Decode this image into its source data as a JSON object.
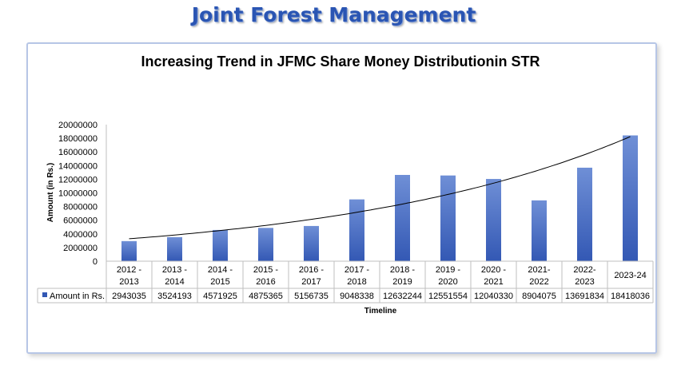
{
  "header": {
    "title": "Joint Forest Management"
  },
  "chart_data": {
    "type": "bar",
    "title": "Increasing Trend in JFMC Share Money Distributionin STR",
    "xlabel": "Timeline",
    "ylabel": "Amount  (in Rs.)",
    "ylim": [
      0,
      20000000
    ],
    "yticks": [
      "0",
      "2000000",
      "4000000",
      "6000000",
      "8000000",
      "10000000",
      "12000000",
      "14000000",
      "16000000",
      "18000000",
      "20000000"
    ],
    "categories": [
      [
        "2012 -",
        "2013"
      ],
      [
        "2013 -",
        "2014"
      ],
      [
        "2014 -",
        "2015"
      ],
      [
        "2015 -",
        "2016"
      ],
      [
        "2016 -",
        "2017"
      ],
      [
        "2017 -",
        "2018"
      ],
      [
        "2018 -",
        "2019"
      ],
      [
        "2019 -",
        "2020"
      ],
      [
        "2020 -",
        "2021"
      ],
      [
        "2021-",
        "2022"
      ],
      [
        "2022-",
        "2023"
      ],
      [
        "2023-24"
      ]
    ],
    "series": [
      {
        "name": "Amount in Rs.",
        "values": [
          2943035,
          3524193,
          4571925,
          4875365,
          5156735,
          9048338,
          12632244,
          12551554,
          12040330,
          8904075,
          13691834,
          18418036
        ],
        "table_values": [
          "2943035",
          "3524193",
          "4571925",
          "4875365",
          "5156735",
          "9048338",
          "12632244",
          "12551554",
          "12040330",
          "8904075",
          "13691834",
          "18418036"
        ]
      }
    ],
    "trendline": "exponential",
    "grid": false,
    "legend": "data-table",
    "colors": {
      "bar_top": "#6f8fd6",
      "bar_bottom": "#3358b4",
      "trend": "#000000",
      "grid_line": "#bfbfbf"
    }
  }
}
